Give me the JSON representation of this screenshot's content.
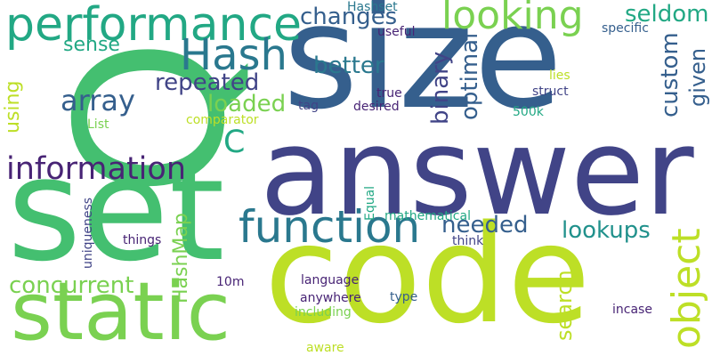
{
  "palette": {
    "purple": "#482475",
    "indigo": "#414487",
    "blue": "#355f8d",
    "teal": "#2a788e",
    "cyan": "#21918c",
    "aqua": "#22a884",
    "green": "#44bf70",
    "lime": "#7ad151",
    "yellow": "#bddf26"
  },
  "words": [
    {
      "text": "size",
      "color": "blue"
    },
    {
      "text": "answer",
      "color": "indigo"
    },
    {
      "text": "set",
      "color": "green"
    },
    {
      "text": "code",
      "color": "yellow"
    },
    {
      "text": "Q",
      "color": "green"
    },
    {
      "text": "static",
      "color": "lime"
    },
    {
      "text": "performance",
      "color": "aqua"
    },
    {
      "text": "function",
      "color": "teal"
    },
    {
      "text": "Hash",
      "color": "teal"
    },
    {
      "text": "looking",
      "color": "lime"
    },
    {
      "text": "information",
      "color": "purple"
    },
    {
      "text": "object",
      "color": "yellow"
    },
    {
      "text": "C",
      "color": "aqua"
    },
    {
      "text": "array",
      "color": "blue"
    },
    {
      "text": "changes",
      "color": "blue"
    },
    {
      "text": "seldom",
      "color": "aqua"
    },
    {
      "text": "better",
      "color": "teal"
    },
    {
      "text": "repeated",
      "color": "indigo"
    },
    {
      "text": "loaded",
      "color": "lime"
    },
    {
      "text": "binary",
      "color": "indigo"
    },
    {
      "text": "optimal",
      "color": "blue"
    },
    {
      "text": "custom",
      "color": "blue"
    },
    {
      "text": "given",
      "color": "blue"
    },
    {
      "text": "needed",
      "color": "blue"
    },
    {
      "text": "lookups",
      "color": "cyan"
    },
    {
      "text": "search",
      "color": "yellow"
    },
    {
      "text": "concurrent",
      "color": "lime"
    },
    {
      "text": "HashMap",
      "color": "lime"
    },
    {
      "text": "sense",
      "color": "aqua"
    },
    {
      "text": "using",
      "color": "yellow"
    },
    {
      "text": "Hashset",
      "color": "teal"
    },
    {
      "text": "useful",
      "color": "purple"
    },
    {
      "text": "specific",
      "color": "blue"
    },
    {
      "text": "lies",
      "color": "yellow"
    },
    {
      "text": "struct",
      "color": "indigo"
    },
    {
      "text": "500k",
      "color": "aqua"
    },
    {
      "text": "true",
      "color": "purple"
    },
    {
      "text": "desired",
      "color": "purple"
    },
    {
      "text": "tag",
      "color": "indigo"
    },
    {
      "text": "List",
      "color": "lime"
    },
    {
      "text": "comparator",
      "color": "yellow"
    },
    {
      "text": "Equal",
      "color": "aqua"
    },
    {
      "text": "uniqueness",
      "color": "indigo"
    },
    {
      "text": "mathematical",
      "color": "aqua"
    },
    {
      "text": "think",
      "color": "indigo"
    },
    {
      "text": "things",
      "color": "purple"
    },
    {
      "text": "language",
      "color": "purple"
    },
    {
      "text": "10m",
      "color": "purple"
    },
    {
      "text": "anywhere",
      "color": "purple"
    },
    {
      "text": "type",
      "color": "blue"
    },
    {
      "text": "including",
      "color": "lime"
    },
    {
      "text": "incase",
      "color": "purple"
    },
    {
      "text": "aware",
      "color": "yellow"
    }
  ]
}
